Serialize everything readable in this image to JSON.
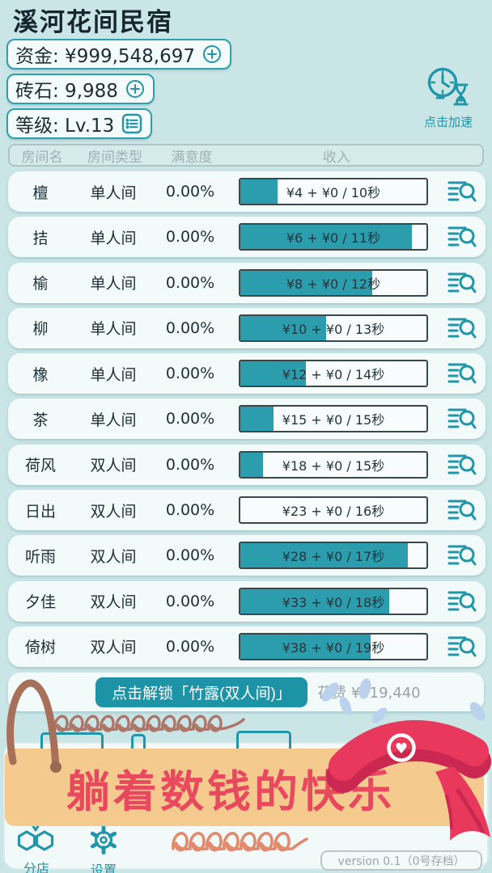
{
  "app": {
    "title": "溪河花间民宿"
  },
  "resources": {
    "funds": {
      "label": "资金",
      "value": "¥999,548,697",
      "display": "资金: ¥999,548,697",
      "action_icon": "plus-icon"
    },
    "gems": {
      "label": "砖石",
      "value": "9,988",
      "display": "砖石: 9,988",
      "action_icon": "plus-icon"
    },
    "level": {
      "label": "等级",
      "value": "Lv.13",
      "display": "等级: Lv.13",
      "action_icon": "list-icon"
    }
  },
  "accelerate": {
    "label": "点击加速",
    "icon": "clock-hourglass-icon"
  },
  "room_table": {
    "columns": {
      "name": "房间名",
      "type": "房间类型",
      "satisfaction": "满意度",
      "income": "收入"
    },
    "rows": [
      {
        "name": "檀",
        "type": "单人间",
        "satisfaction": "0.00%",
        "income": "¥4 + ¥0 / 10秒",
        "progress_percent": 20
      },
      {
        "name": "拮",
        "type": "单人间",
        "satisfaction": "0.00%",
        "income": "¥6 + ¥0 / 11秒",
        "progress_percent": 92
      },
      {
        "name": "榆",
        "type": "单人间",
        "satisfaction": "0.00%",
        "income": "¥8 + ¥0 / 12秒",
        "progress_percent": 71
      },
      {
        "name": "柳",
        "type": "单人间",
        "satisfaction": "0.00%",
        "income": "¥10 + ¥0 / 13秒",
        "progress_percent": 46
      },
      {
        "name": "橡",
        "type": "单人间",
        "satisfaction": "0.00%",
        "income": "¥12 + ¥0 / 14秒",
        "progress_percent": 35
      },
      {
        "name": "茶",
        "type": "单人间",
        "satisfaction": "0.00%",
        "income": "¥15 + ¥0 / 15秒",
        "progress_percent": 18
      },
      {
        "name": "荷风",
        "type": "双人间",
        "satisfaction": "0.00%",
        "income": "¥18 + ¥0 / 15秒",
        "progress_percent": 12
      },
      {
        "name": "日出",
        "type": "双人间",
        "satisfaction": "0.00%",
        "income": "¥23 + ¥0 / 16秒",
        "progress_percent": 0
      },
      {
        "name": "听雨",
        "type": "双人间",
        "satisfaction": "0.00%",
        "income": "¥28 + ¥0 / 17秒",
        "progress_percent": 90
      },
      {
        "name": "夕佳",
        "type": "双人间",
        "satisfaction": "0.00%",
        "income": "¥33 + ¥0 / 18秒",
        "progress_percent": 80
      },
      {
        "name": "倚树",
        "type": "双人间",
        "satisfaction": "0.00%",
        "income": "¥38 + ¥0 / 19秒",
        "progress_percent": 70
      }
    ]
  },
  "unlock": {
    "button_label": "点击解锁「竹露(双人间)」",
    "cost": "花费 ¥319,440"
  },
  "banner": {
    "text": "躺着数钱的快乐"
  },
  "nav": {
    "branches": {
      "label": "分店",
      "icon": "hexagons-icon"
    },
    "settings": {
      "label": "设置",
      "icon": "gear-icon"
    }
  },
  "version": {
    "text": "version 0.1（0号存档）"
  },
  "colors": {
    "background": "#c9e5e6",
    "accent_teal": "#2196a8",
    "progress_fill": "#2b9dac",
    "card": "#f3fafa",
    "banner_bg": "#f4ca8f",
    "banner_text": "#e8495e",
    "ribbon_red": "#e8385c",
    "rope_brown": "#a7705b"
  }
}
